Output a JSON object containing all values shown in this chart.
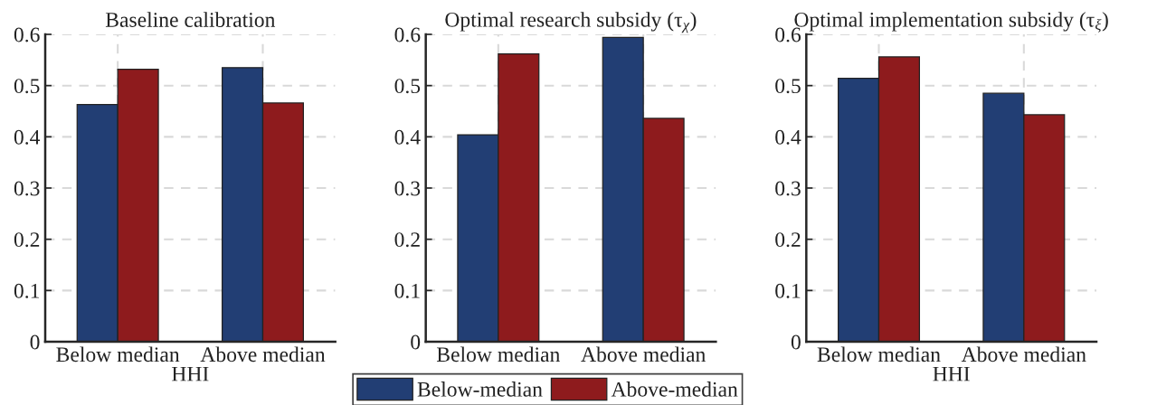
{
  "chart_data": [
    {
      "type": "bar",
      "title": "Baseline calibration",
      "xlabel": "HHI",
      "categories": [
        "Below median",
        "Above median"
      ],
      "series": [
        {
          "color": "#223e74",
          "values": [
            0.463,
            0.535
          ]
        },
        {
          "color": "#8e1b1d",
          "values": [
            0.532,
            0.466
          ]
        }
      ],
      "ylim": [
        0,
        0.6
      ],
      "yticks": [
        0,
        0.1,
        0.2,
        0.3,
        0.4,
        0.5,
        0.6
      ],
      "grid": true
    },
    {
      "type": "bar",
      "title": "Optimal research subsidy (τ$_{χ}$)",
      "categories": [
        "Below median",
        "Above median"
      ],
      "series": [
        {
          "name": "Below-median",
          "color": "#223e74",
          "values": [
            0.404,
            0.594
          ]
        },
        {
          "name": "Above-median",
          "color": "#8e1b1d",
          "values": [
            0.562,
            0.436
          ]
        }
      ],
      "ylim": [
        0,
        0.6
      ],
      "yticks": [
        0,
        0.1,
        0.2,
        0.3,
        0.4,
        0.5,
        0.6
      ],
      "grid": true,
      "legend": "bottom"
    },
    {
      "type": "bar",
      "title": "Optimal implementation subsidy (τ$_{ξ}$)",
      "xlabel": "HHI",
      "categories": [
        "Below median",
        "Above median"
      ],
      "series": [
        {
          "color": "#223e74",
          "values": [
            0.514,
            0.485
          ]
        },
        {
          "color": "#8e1b1d",
          "values": [
            0.556,
            0.443
          ]
        }
      ],
      "ylim": [
        0,
        0.6
      ],
      "yticks": [
        0,
        0.1,
        0.2,
        0.3,
        0.4,
        0.5,
        0.6
      ],
      "grid": true
    }
  ]
}
